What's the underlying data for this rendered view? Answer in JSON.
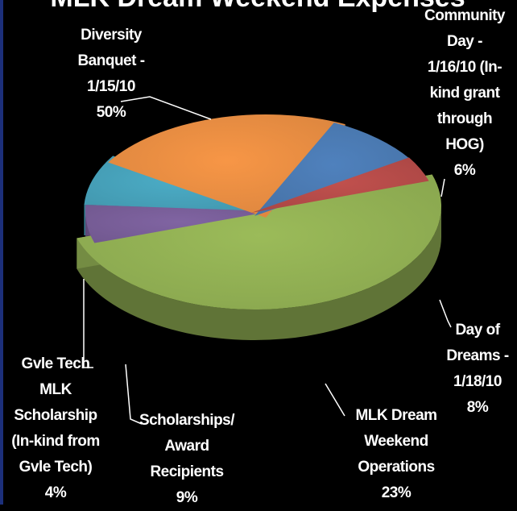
{
  "chart_data": {
    "type": "pie",
    "title": "MLK Dream Weekend Expenses",
    "slices": [
      {
        "label": "Diversity Banquet - 1/15/10",
        "value": 50,
        "value_label": "50%",
        "color": "#9bbb59"
      },
      {
        "label": "Community Day - 1/16/10 (In-kind grant through HOG)",
        "value": 6,
        "value_label": "6%",
        "color": "#8064a2"
      },
      {
        "label": "Day of Dreams - 1/18/10",
        "value": 8,
        "value_label": "8%",
        "color": "#4bacc6"
      },
      {
        "label": "MLK Dream Weekend Operations",
        "value": 23,
        "value_label": "23%",
        "color": "#f79646"
      },
      {
        "label": "Scholarships/ Award Recipients",
        "value": 9,
        "value_label": "9%",
        "color": "#4f81bd"
      },
      {
        "label": "Gvle Tech MLK Scholarship (In-kind from Gvle Tech)",
        "value": 4,
        "value_label": "4%",
        "color": "#c0504d"
      }
    ]
  },
  "labels": {
    "banquet": "Diversity\nBanquet -\n1/15/10\n50%",
    "community": "Community\nDay -\n1/16/10 (In-\nkind grant\nthrough\nHOG)\n6%",
    "dreams": "Day of\nDreams -\n1/18/10\n8%",
    "operations": "MLK Dream\nWeekend\nOperations\n23%",
    "scholarships": "Scholarships/\nAward\nRecipients\n9%",
    "gvle": "Gvle Tech\nMLK\nScholarship\n(In-kind from\nGvle Tech)\n4%"
  }
}
